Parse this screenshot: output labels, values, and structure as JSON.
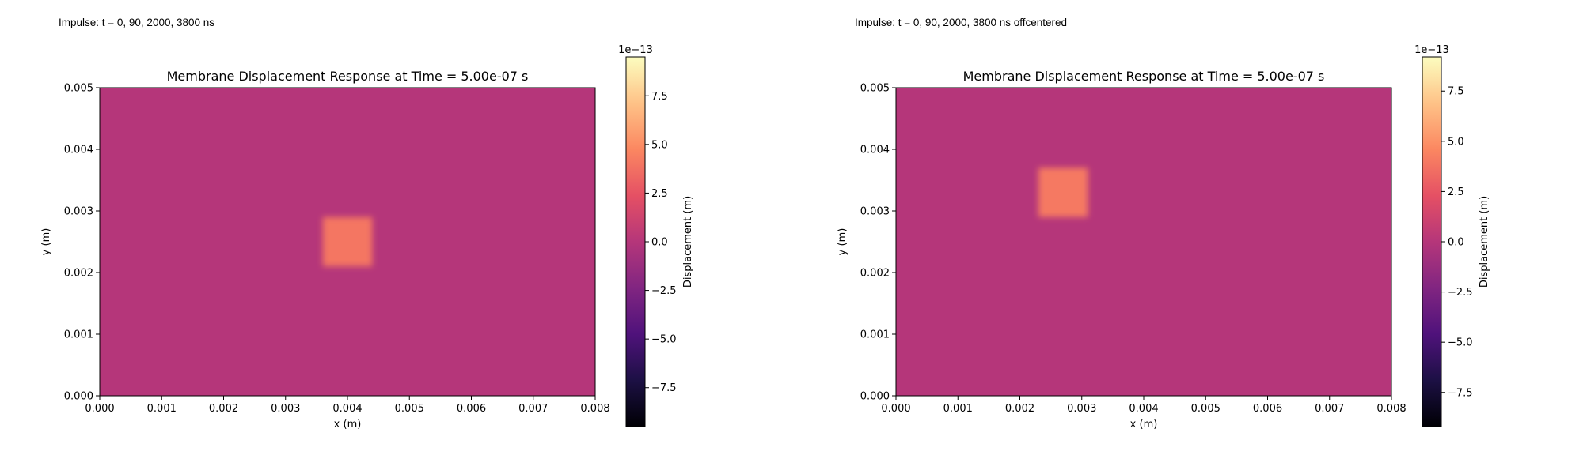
{
  "chart_data": [
    {
      "type": "heatmap",
      "caption": "Impulse: t = 0, 90, 2000, 3800 ns",
      "title": "Membrane Displacement Response at Time = 5.00e-07 s",
      "xlabel": "x (m)",
      "ylabel": "y (m)",
      "xlim": [
        0,
        0.008
      ],
      "ylim": [
        0,
        0.005
      ],
      "xticks": [
        "0.000",
        "0.001",
        "0.002",
        "0.003",
        "0.004",
        "0.005",
        "0.006",
        "0.007",
        "0.008"
      ],
      "yticks": [
        "0.000",
        "0.001",
        "0.002",
        "0.003",
        "0.004",
        "0.005"
      ],
      "colormap": "magma",
      "background_value": 0.0,
      "hotspot": {
        "x_range": [
          0.0036,
          0.0044
        ],
        "y_range": [
          0.0021,
          0.0029
        ],
        "value": 4.0
      },
      "colorbar": {
        "label": "Displacement (m)",
        "multiplier": "1e−13",
        "vmin": -9.5,
        "vmax": 9.5,
        "ticks": [
          7.5,
          5.0,
          2.5,
          0.0,
          -2.5,
          -5.0,
          -7.5
        ],
        "tick_labels": [
          "7.5",
          "5.0",
          "2.5",
          "0.0",
          "−2.5",
          "−5.0",
          "−7.5"
        ]
      }
    },
    {
      "type": "heatmap",
      "caption": "Impulse: t = 0, 90, 2000, 3800 ns offcentered",
      "title": "Membrane Displacement Response at Time = 5.00e-07 s",
      "xlabel": "x (m)",
      "ylabel": "y (m)",
      "xlim": [
        0,
        0.008
      ],
      "ylim": [
        0,
        0.005
      ],
      "xticks": [
        "0.000",
        "0.001",
        "0.002",
        "0.003",
        "0.004",
        "0.005",
        "0.006",
        "0.007",
        "0.008"
      ],
      "yticks": [
        "0.000",
        "0.001",
        "0.002",
        "0.003",
        "0.004",
        "0.005"
      ],
      "colormap": "magma",
      "background_value": 0.0,
      "hotspot": {
        "x_range": [
          0.0023,
          0.0031
        ],
        "y_range": [
          0.0029,
          0.0037
        ],
        "value": 4.0
      },
      "colorbar": {
        "label": "Displacement (m)",
        "multiplier": "1e−13",
        "vmin": -9.2,
        "vmax": 9.2,
        "ticks": [
          7.5,
          5.0,
          2.5,
          0.0,
          -2.5,
          -5.0,
          -7.5
        ],
        "tick_labels": [
          "7.5",
          "5.0",
          "2.5",
          "0.0",
          "−2.5",
          "−5.0",
          "−7.5"
        ]
      }
    }
  ]
}
